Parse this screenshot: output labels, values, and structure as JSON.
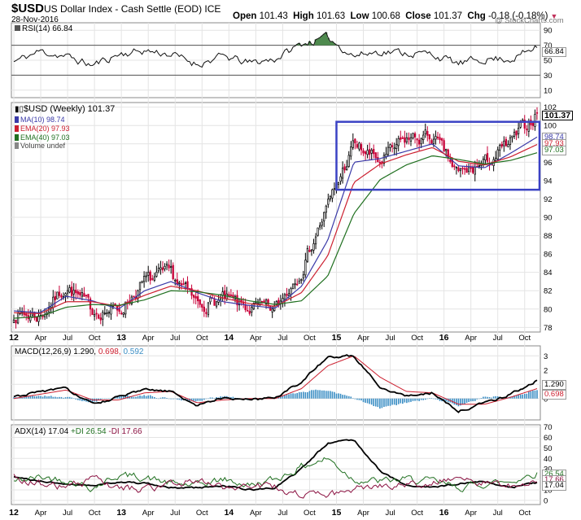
{
  "header": {
    "symbol": "$USD",
    "name": "US Dollar Index - Cash Settle (EOD) ICE",
    "date": "28-Nov-2016",
    "open_label": "Open",
    "open": "101.43",
    "high_label": "High",
    "high": "101.63",
    "low_label": "Low",
    "low": "100.68",
    "close_label": "Close",
    "close": "101.37",
    "chg_label": "Chg",
    "chg": "-0.18 (-0.18%)",
    "credit": "@ StockCharts.com"
  },
  "rsi": {
    "label": "RSI(14) 66.84",
    "last": "66.84"
  },
  "main_legend": {
    "title": "$USD (Weekly) 101.37",
    "ma10": "MA(10) 98.74",
    "ema20": "EMA(20) 97.93",
    "ema40": "EMA(40) 97.03",
    "volume": "Volume undef"
  },
  "macd": {
    "label_a": "MACD(12,26,9) 1.290,",
    "label_b": "0.698,",
    "label_c": "0.592",
    "last_macd": "1.290",
    "last_signal": "0.698"
  },
  "adx": {
    "label_a": "ADX(14) 17.04",
    "label_b": "+DI 26.54",
    "label_c": "-DI 17.66",
    "last_plus": "26.54",
    "last_minus": "17.66",
    "last_adx": "17.04"
  },
  "x_axis": [
    "12",
    "Apr",
    "Jul",
    "Oct",
    "13",
    "Apr",
    "Jul",
    "Oct",
    "14",
    "Apr",
    "Jul",
    "Oct",
    "15",
    "Apr",
    "Jul",
    "Oct",
    "16",
    "Apr",
    "Jul",
    "Oct"
  ],
  "colors": {
    "bull": "#000000",
    "bear": "#c80038",
    "ma10": "#3a3aa8",
    "ema20": "#cc2030",
    "ema40": "#207020",
    "box": "#3b42c4",
    "hist": "#3b8ec4",
    "rsi_fill": "#4e8a4e"
  },
  "chart_data": [
    {
      "type": "line",
      "title": "RSI(14) 66.84",
      "x": [
        "12",
        "Apr",
        "Jul",
        "Oct",
        "13",
        "Apr",
        "Jul",
        "Oct",
        "14",
        "Apr",
        "Jul",
        "Oct",
        "15",
        "Apr",
        "Jul",
        "Oct",
        "16",
        "Apr",
        "Jul",
        "Oct",
        "Nov-16"
      ],
      "series": [
        {
          "name": "RSI(14)",
          "values": [
            48,
            62,
            55,
            43,
            58,
            63,
            58,
            45,
            55,
            46,
            52,
            72,
            80,
            56,
            62,
            60,
            58,
            45,
            52,
            52,
            66.84
          ]
        }
      ],
      "yticks": [
        10,
        30,
        50,
        70,
        90
      ],
      "ylim": [
        0,
        100
      ],
      "reference_lines": [
        30,
        70
      ]
    },
    {
      "type": "candlestick",
      "title": "$USD (Weekly) 101.37",
      "x": [
        "12",
        "Apr",
        "Jul",
        "Oct",
        "13",
        "Apr",
        "Jul",
        "Oct",
        "14",
        "Apr",
        "Jul",
        "Oct",
        "15",
        "Apr",
        "Jul",
        "Oct",
        "16",
        "Apr",
        "Jul",
        "Oct",
        "Nov-16"
      ],
      "series": [
        {
          "name": "$USD close",
          "values": [
            79.5,
            79.2,
            82.5,
            79.9,
            79.8,
            83.0,
            83.8,
            80.5,
            81.0,
            80.1,
            79.9,
            84.5,
            91.2,
            97.9,
            96.0,
            98.5,
            98.8,
            94.6,
            95.8,
            98.1,
            101.37
          ]
        },
        {
          "name": "MA(10) 98.74",
          "values": [
            79.8,
            79.6,
            81.4,
            80.9,
            80.0,
            82.0,
            83.0,
            81.8,
            80.8,
            80.4,
            80.1,
            82.5,
            87.5,
            96.0,
            96.4,
            97.2,
            98.0,
            95.6,
            95.4,
            97.0,
            98.74
          ]
        },
        {
          "name": "EMA(20) 97.93",
          "values": [
            79.6,
            79.5,
            80.8,
            80.8,
            80.3,
            81.5,
            82.5,
            82.0,
            81.2,
            80.6,
            80.3,
            81.8,
            85.8,
            93.8,
            95.8,
            96.8,
            97.6,
            96.1,
            95.7,
            96.6,
            97.93
          ]
        },
        {
          "name": "EMA(40) 97.03",
          "values": [
            79.0,
            79.2,
            80.2,
            80.5,
            80.4,
            81.0,
            82.0,
            81.9,
            81.5,
            80.9,
            80.5,
            80.9,
            83.6,
            90.4,
            94.1,
            95.7,
            96.7,
            96.3,
            95.8,
            96.2,
            97.03
          ]
        }
      ],
      "yticks": [
        78,
        80,
        82,
        84,
        86,
        88,
        90,
        92,
        94,
        96,
        98,
        100,
        102
      ],
      "ylim": [
        77.5,
        102.5
      ],
      "last_values": {
        "close": "101.37",
        "ma10": "98.74",
        "ema20": "97.93",
        "ema40": "97.03"
      },
      "annotation": {
        "type": "rectangle",
        "x_from": "Jan-15",
        "x_to": "Nov-16",
        "y_from": 93.0,
        "y_to": 100.4
      }
    },
    {
      "type": "line",
      "title": "MACD(12,26,9) 1.290, 0.698, 0.592",
      "x": [
        "12",
        "Apr",
        "Jul",
        "Oct",
        "13",
        "Apr",
        "Jul",
        "Oct",
        "14",
        "Apr",
        "Jul",
        "Oct",
        "15",
        "Apr",
        "Jul",
        "Oct",
        "16",
        "Apr",
        "Jul",
        "Oct",
        "Nov-16"
      ],
      "series": [
        {
          "name": "MACD",
          "values": [
            0.1,
            0.5,
            0.7,
            -0.4,
            0.1,
            0.6,
            0.5,
            -0.5,
            0.1,
            -0.1,
            0.1,
            1.2,
            2.9,
            3.0,
            0.8,
            0.2,
            0.4,
            -0.9,
            -0.3,
            0.3,
            1.29
          ]
        },
        {
          "name": "Signal",
          "values": [
            0.0,
            0.3,
            0.6,
            -0.1,
            -0.1,
            0.4,
            0.5,
            -0.3,
            -0.1,
            0.0,
            0.0,
            0.7,
            2.3,
            3.0,
            1.5,
            0.5,
            0.4,
            -0.4,
            -0.4,
            0.1,
            0.698
          ]
        },
        {
          "name": "Histogram",
          "values": [
            0.1,
            0.2,
            0.1,
            -0.3,
            0.2,
            0.2,
            0.0,
            -0.2,
            0.2,
            -0.1,
            0.1,
            0.5,
            0.6,
            0.0,
            -0.7,
            -0.3,
            0.0,
            -0.5,
            0.1,
            0.2,
            0.592
          ]
        }
      ],
      "yticks": [
        0,
        1,
        2,
        3
      ],
      "ylim": [
        -1.5,
        3.7
      ]
    },
    {
      "type": "line",
      "title": "ADX(14) 17.04 +DI 26.54 -DI 17.66",
      "x": [
        "12",
        "Apr",
        "Jul",
        "Oct",
        "13",
        "Apr",
        "Jul",
        "Oct",
        "14",
        "Apr",
        "Jul",
        "Oct",
        "15",
        "Apr",
        "Jul",
        "Oct",
        "16",
        "Apr",
        "Jul",
        "Oct",
        "Nov-16"
      ],
      "series": [
        {
          "name": "ADX(14)",
          "values": [
            22,
            18,
            16,
            14,
            18,
            16,
            12,
            12,
            14,
            10,
            12,
            30,
            55,
            58,
            28,
            14,
            12,
            16,
            18,
            12,
            17.04
          ]
        },
        {
          "name": "+DI",
          "values": [
            18,
            22,
            20,
            12,
            24,
            22,
            16,
            14,
            20,
            14,
            20,
            32,
            40,
            20,
            18,
            20,
            18,
            12,
            16,
            18,
            26.54
          ]
        },
        {
          "name": "-DI",
          "values": [
            22,
            16,
            12,
            20,
            12,
            10,
            14,
            20,
            12,
            16,
            12,
            4,
            4,
            10,
            14,
            14,
            18,
            20,
            16,
            14,
            17.66
          ]
        }
      ],
      "yticks": [
        0,
        10,
        20,
        30,
        40,
        50,
        60,
        70
      ],
      "ylim": [
        -4,
        72
      ]
    }
  ]
}
